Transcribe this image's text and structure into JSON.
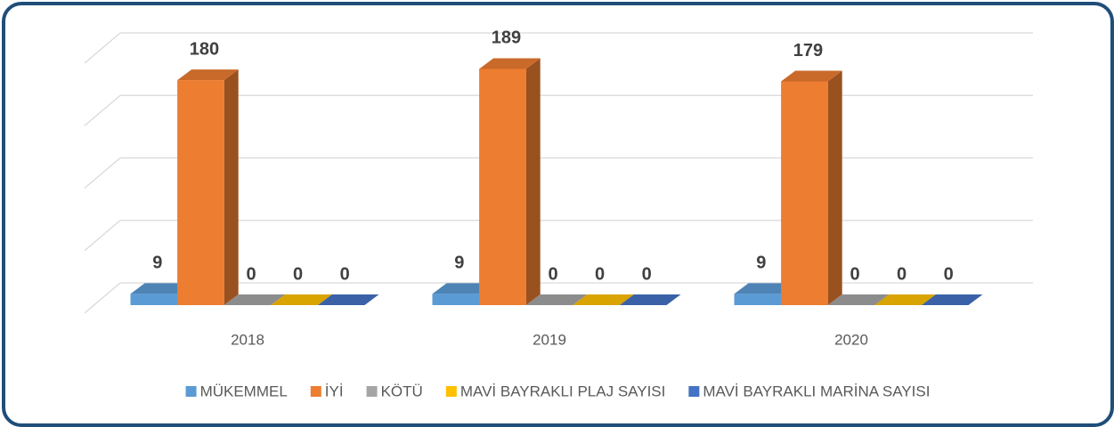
{
  "chart_data": {
    "type": "bar3d",
    "categories": [
      "2018",
      "2019",
      "2020"
    ],
    "series": [
      {
        "name": "MÜKEMMEL",
        "color": "#5b9bd5",
        "values": [
          9,
          9,
          9
        ]
      },
      {
        "name": "İYİ",
        "color": "#ed7d31",
        "values": [
          180,
          189,
          179
        ]
      },
      {
        "name": "KÖTÜ",
        "color": "#a5a5a5",
        "values": [
          0,
          0,
          0
        ]
      },
      {
        "name": "MAVİ BAYRAKLI PLAJ SAYISI",
        "color": "#ffc000",
        "values": [
          0,
          0,
          0
        ]
      },
      {
        "name": "MAVİ BAYRAKLI MARİNA SAYISI",
        "color": "#4472c4",
        "values": [
          0,
          0,
          0
        ]
      }
    ],
    "ylim": [
      0,
      200
    ],
    "yticks": [
      0,
      50,
      100,
      150,
      200
    ],
    "grid": true,
    "legend": "bottom"
  }
}
